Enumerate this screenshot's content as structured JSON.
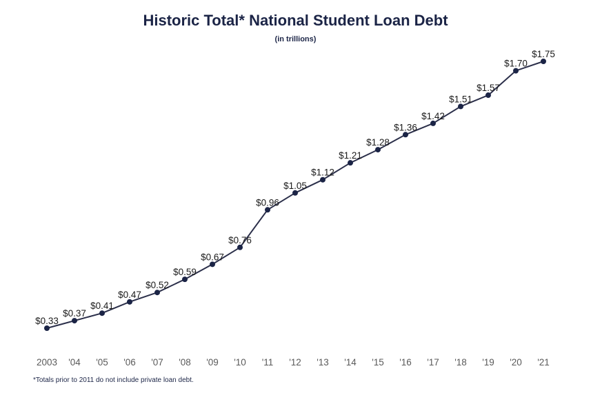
{
  "chart_data": {
    "type": "line",
    "title": "Historic Total* National Student Loan Debt",
    "subtitle": "(in trillions)",
    "footnote": "*Totals  prior to 2011 do not include private loan debt.",
    "categories": [
      "2003",
      "'04",
      "'05",
      "'06",
      "'07",
      "'08",
      "'09",
      "'10",
      "'11",
      "'12",
      "'13",
      "'14",
      "'15",
      "'16",
      "'17",
      "'18",
      "'19",
      "'20",
      "'21"
    ],
    "values": [
      0.33,
      0.37,
      0.41,
      0.47,
      0.52,
      0.59,
      0.67,
      0.76,
      0.96,
      1.05,
      1.12,
      1.21,
      1.28,
      1.36,
      1.42,
      1.51,
      1.57,
      1.7,
      1.75
    ],
    "data_labels": [
      "$0.33",
      "$0.37",
      "$0.41",
      "$0.47",
      "$0.52",
      "$0.59",
      "$0.67",
      "$0.76",
      "$0.96",
      "$1.05",
      "$1.12",
      "$1.21",
      "$1.28",
      "$1.36",
      "$1.42",
      "$1.51",
      "$1.57",
      "$1.70",
      "$1.75"
    ],
    "ylim": [
      0.33,
      1.75
    ],
    "grid": false,
    "legend": "none",
    "colors": {
      "line": "#2b2f4a",
      "marker": "#1b2446",
      "title": "#1b2446",
      "tick": "#595959"
    }
  }
}
